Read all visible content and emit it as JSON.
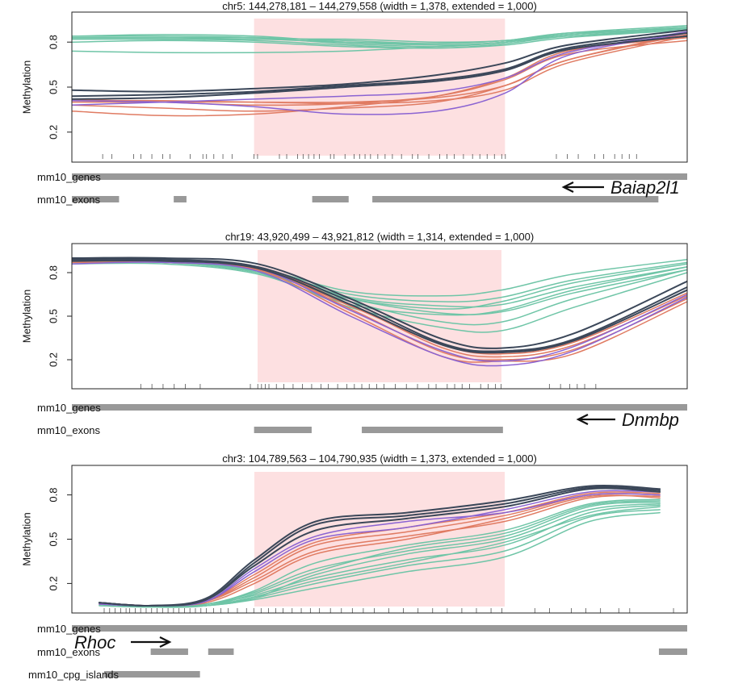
{
  "colors": {
    "green": "#6fc5a7",
    "orange": "#e07b62",
    "purple": "#8a63d2",
    "navy": "#3b4759",
    "dmr": "#fde0e1",
    "track": "#999999",
    "tick": "#555555"
  },
  "chart_data": [
    {
      "type": "line",
      "title": "chr5: 144,278,181 – 144,279,558 (width = 1,378, extended = 1,000)",
      "ylabel": "Methylation",
      "y_ticks": [
        "0.8",
        "0.5",
        "0.2"
      ],
      "y_tick_values": [
        0.8,
        0.5,
        0.2
      ],
      "ylim": [
        0.0,
        1.0
      ],
      "xlim": [
        144277181,
        144280558
      ],
      "dmr_region": [
        144278181,
        144279558
      ],
      "gene": {
        "name": "Baiap2l1",
        "direction": "left"
      },
      "tracks": [
        {
          "label": "mm10_genes",
          "segments": [
            [
              144277181,
              144280558
            ]
          ]
        },
        {
          "label": "mm10_exons",
          "segments": [
            [
              144277181,
              144277440
            ],
            [
              144277740,
              144277810
            ],
            [
              144278500,
              144278700
            ],
            [
              144278830,
              144280400
            ]
          ]
        }
      ],
      "cpg_positions": [
        144277350,
        144277400,
        144277520,
        144277560,
        144277620,
        144277680,
        144277720,
        144277830,
        144277900,
        144277920,
        144277960,
        144278010,
        144278060,
        144278180,
        144278200,
        144278320,
        144278360,
        144278420,
        144278450,
        144278480,
        144278510,
        144278540,
        144278600,
        144278620,
        144278680,
        144278730,
        144278760,
        144278790,
        144278820,
        144278860,
        144278900,
        144278940,
        144278990,
        144279050,
        144279080,
        144279140,
        144279200,
        144279240,
        144279280,
        144279330,
        144279380,
        144279420,
        144279460,
        144279500,
        144279540,
        144279560,
        144279840,
        144279900,
        144279960,
        144280050,
        144280100,
        144280160,
        144280200,
        144280240,
        144280280
      ],
      "x": [
        144277181,
        144277681,
        144278181,
        144278681,
        144279181,
        144279558,
        144279900,
        144280558
      ],
      "series": [
        {
          "group": "green",
          "values": [
            0.84,
            0.84,
            0.83,
            0.79,
            0.77,
            0.8,
            0.85,
            0.9
          ]
        },
        {
          "group": "green",
          "values": [
            0.83,
            0.83,
            0.83,
            0.81,
            0.79,
            0.81,
            0.86,
            0.89
          ]
        },
        {
          "group": "green",
          "values": [
            0.82,
            0.82,
            0.81,
            0.78,
            0.76,
            0.79,
            0.84,
            0.89
          ]
        },
        {
          "group": "green",
          "values": [
            0.84,
            0.85,
            0.84,
            0.8,
            0.78,
            0.8,
            0.85,
            0.89
          ]
        },
        {
          "group": "green",
          "values": [
            0.8,
            0.81,
            0.8,
            0.77,
            0.76,
            0.78,
            0.83,
            0.88
          ]
        },
        {
          "group": "green",
          "values": [
            0.82,
            0.82,
            0.82,
            0.8,
            0.79,
            0.81,
            0.85,
            0.9
          ]
        },
        {
          "group": "green",
          "values": [
            0.74,
            0.73,
            0.73,
            0.74,
            0.77,
            0.8,
            0.84,
            0.88
          ]
        },
        {
          "group": "green",
          "values": [
            0.83,
            0.83,
            0.82,
            0.82,
            0.8,
            0.81,
            0.86,
            0.91
          ]
        },
        {
          "group": "orange",
          "values": [
            0.4,
            0.4,
            0.4,
            0.39,
            0.41,
            0.48,
            0.66,
            0.84
          ]
        },
        {
          "group": "orange",
          "values": [
            0.38,
            0.36,
            0.34,
            0.36,
            0.4,
            0.51,
            0.68,
            0.85
          ]
        },
        {
          "group": "orange",
          "values": [
            0.42,
            0.4,
            0.38,
            0.39,
            0.44,
            0.55,
            0.72,
            0.81
          ]
        },
        {
          "group": "orange",
          "values": [
            0.34,
            0.31,
            0.32,
            0.37,
            0.44,
            0.56,
            0.74,
            0.83
          ]
        },
        {
          "group": "orange",
          "values": [
            0.41,
            0.41,
            0.4,
            0.4,
            0.43,
            0.51,
            0.68,
            0.86
          ]
        },
        {
          "group": "purple",
          "values": [
            0.41,
            0.4,
            0.37,
            0.32,
            0.34,
            0.46,
            0.71,
            0.86
          ]
        },
        {
          "group": "purple",
          "values": [
            0.38,
            0.4,
            0.42,
            0.44,
            0.47,
            0.56,
            0.73,
            0.87
          ]
        },
        {
          "group": "navy",
          "values": [
            0.48,
            0.47,
            0.49,
            0.52,
            0.58,
            0.66,
            0.78,
            0.88
          ]
        },
        {
          "group": "navy",
          "values": [
            0.44,
            0.45,
            0.47,
            0.51,
            0.55,
            0.62,
            0.76,
            0.86
          ]
        },
        {
          "group": "navy",
          "values": [
            0.42,
            0.43,
            0.46,
            0.5,
            0.54,
            0.61,
            0.75,
            0.84
          ]
        }
      ]
    },
    {
      "type": "line",
      "title": "chr19: 43,920,499 – 43,921,812 (width = 1,314, extended = 1,000)",
      "ylabel": "Methylation",
      "y_ticks": [
        "0.8",
        "0.5",
        "0.2"
      ],
      "y_tick_values": [
        0.8,
        0.5,
        0.2
      ],
      "ylim": [
        0.0,
        1.0
      ],
      "xlim": [
        43919499,
        43922812
      ],
      "dmr_region": [
        43920499,
        43921812
      ],
      "gene": {
        "name": "Dnmbp",
        "direction": "left"
      },
      "tracks": [
        {
          "label": "mm10_genes",
          "segments": [
            [
              43919499,
              43922812
            ]
          ]
        },
        {
          "label": "mm10_exons",
          "segments": [
            [
              43920480,
              43920790
            ],
            [
              43921060,
              43921820
            ]
          ]
        }
      ],
      "cpg_positions": [
        43919870,
        43919930,
        43919990,
        43920050,
        43920110,
        43920190,
        43920460,
        43920500,
        43920520,
        43920540,
        43920560,
        43920600,
        43920640,
        43920690,
        43920740,
        43920790,
        43920840,
        43920880,
        43920930,
        43920980,
        43921020,
        43921060,
        43921100,
        43921140,
        43921180,
        43921240,
        43921300,
        43921360,
        43921420,
        43921460,
        43921520,
        43921560,
        43921600,
        43921640,
        43921700,
        43921740,
        43921780,
        43921810,
        43922070,
        43922130,
        43922180,
        43922220,
        43922260,
        43922320
      ],
      "x": [
        43919499,
        43919999,
        43920499,
        43920999,
        43921499,
        43921812,
        43922200,
        43922812
      ],
      "series": [
        {
          "group": "green",
          "values": [
            0.89,
            0.89,
            0.83,
            0.67,
            0.64,
            0.68,
            0.79,
            0.89
          ]
        },
        {
          "group": "green",
          "values": [
            0.88,
            0.88,
            0.82,
            0.65,
            0.6,
            0.63,
            0.75,
            0.87
          ]
        },
        {
          "group": "green",
          "values": [
            0.87,
            0.87,
            0.8,
            0.62,
            0.55,
            0.6,
            0.73,
            0.86
          ]
        },
        {
          "group": "green",
          "values": [
            0.9,
            0.89,
            0.83,
            0.63,
            0.57,
            0.58,
            0.7,
            0.84
          ]
        },
        {
          "group": "green",
          "values": [
            0.86,
            0.86,
            0.79,
            0.58,
            0.51,
            0.54,
            0.68,
            0.84
          ]
        },
        {
          "group": "green",
          "values": [
            0.88,
            0.88,
            0.81,
            0.6,
            0.46,
            0.46,
            0.62,
            0.82
          ]
        },
        {
          "group": "green",
          "values": [
            0.89,
            0.88,
            0.8,
            0.56,
            0.42,
            0.4,
            0.56,
            0.8
          ]
        },
        {
          "group": "green",
          "values": [
            0.87,
            0.87,
            0.81,
            0.62,
            0.52,
            0.53,
            0.66,
            0.82
          ]
        },
        {
          "group": "orange",
          "values": [
            0.88,
            0.88,
            0.84,
            0.58,
            0.28,
            0.22,
            0.3,
            0.64
          ]
        },
        {
          "group": "orange",
          "values": [
            0.89,
            0.88,
            0.83,
            0.55,
            0.25,
            0.2,
            0.27,
            0.62
          ]
        },
        {
          "group": "orange",
          "values": [
            0.9,
            0.89,
            0.82,
            0.52,
            0.22,
            0.19,
            0.24,
            0.6
          ]
        },
        {
          "group": "orange",
          "values": [
            0.87,
            0.87,
            0.82,
            0.57,
            0.3,
            0.24,
            0.32,
            0.66
          ]
        },
        {
          "group": "purple",
          "values": [
            0.86,
            0.87,
            0.81,
            0.5,
            0.22,
            0.16,
            0.26,
            0.63
          ]
        },
        {
          "group": "purple",
          "values": [
            0.88,
            0.88,
            0.83,
            0.54,
            0.26,
            0.19,
            0.29,
            0.65
          ]
        },
        {
          "group": "navy",
          "values": [
            0.9,
            0.9,
            0.86,
            0.62,
            0.34,
            0.28,
            0.38,
            0.74
          ]
        },
        {
          "group": "navy",
          "values": [
            0.89,
            0.89,
            0.84,
            0.6,
            0.31,
            0.26,
            0.34,
            0.7
          ]
        },
        {
          "group": "navy",
          "values": [
            0.88,
            0.88,
            0.83,
            0.58,
            0.3,
            0.25,
            0.33,
            0.68
          ]
        }
      ]
    },
    {
      "type": "line",
      "title": "chr3: 104,789,563 – 104,790,935 (width = 1,373, extended = 1,000)",
      "ylabel": "Methylation",
      "y_ticks": [
        "0.8",
        "0.5",
        "0.2"
      ],
      "y_tick_values": [
        0.8,
        0.5,
        0.2
      ],
      "ylim": [
        0.0,
        1.0
      ],
      "xlim": [
        104788563,
        104791935
      ],
      "dmr_region": [
        104789563,
        104790935
      ],
      "gene": {
        "name": "Rhoc",
        "direction": "right"
      },
      "tracks": [
        {
          "label": "mm10_genes",
          "segments": [
            [
              104788563,
              104791935
            ]
          ]
        },
        {
          "label": "mm10_exons",
          "segments": [
            [
              104788995,
              104789200
            ],
            [
              104789310,
              104789450
            ],
            [
              104791780,
              104791935
            ]
          ]
        },
        {
          "label": "mm10_cpg_islands",
          "segments": [
            [
              104788740,
              104789265
            ]
          ]
        }
      ],
      "cpg_positions": [
        104788740,
        104788770,
        104788800,
        104788830,
        104788860,
        104788880,
        104788910,
        104788940,
        104788970,
        104789000,
        104789030,
        104789060,
        104789090,
        104789120,
        104789150,
        104789180,
        104789210,
        104789240,
        104789270,
        104789300,
        104789340,
        104789380,
        104789420,
        104789470,
        104789520,
        104789560,
        104789600,
        104789640,
        104789680,
        104789720,
        104789770,
        104789820,
        104789870,
        104789920,
        104789980,
        104790040,
        104790100,
        104790160,
        104790220,
        104790300,
        104790380,
        104790460,
        104790540,
        104790620,
        104790700,
        104790780,
        104790860,
        104790920,
        104791100,
        104791180,
        104791300,
        104791380,
        104791460,
        104791560,
        104791620,
        104791860
      ],
      "x": [
        104788713,
        104789000,
        104789300,
        104789563,
        104789900,
        104790400,
        104790935,
        104791400,
        104791785
      ],
      "series": [
        {
          "group": "green",
          "values": [
            0.06,
            0.04,
            0.05,
            0.1,
            0.2,
            0.32,
            0.42,
            0.65,
            0.7
          ]
        },
        {
          "group": "green",
          "values": [
            0.06,
            0.04,
            0.05,
            0.09,
            0.17,
            0.28,
            0.38,
            0.62,
            0.68
          ]
        },
        {
          "group": "green",
          "values": [
            0.06,
            0.04,
            0.06,
            0.12,
            0.24,
            0.36,
            0.46,
            0.68,
            0.73
          ]
        },
        {
          "group": "green",
          "values": [
            0.05,
            0.04,
            0.05,
            0.1,
            0.26,
            0.4,
            0.5,
            0.7,
            0.74
          ]
        },
        {
          "group": "green",
          "values": [
            0.06,
            0.04,
            0.06,
            0.14,
            0.3,
            0.42,
            0.52,
            0.72,
            0.75
          ]
        },
        {
          "group": "green",
          "values": [
            0.05,
            0.04,
            0.05,
            0.11,
            0.22,
            0.34,
            0.48,
            0.66,
            0.72
          ]
        },
        {
          "group": "green",
          "values": [
            0.06,
            0.04,
            0.06,
            0.15,
            0.34,
            0.46,
            0.56,
            0.74,
            0.77
          ]
        },
        {
          "group": "green",
          "values": [
            0.06,
            0.04,
            0.05,
            0.13,
            0.28,
            0.44,
            0.54,
            0.73,
            0.76
          ]
        },
        {
          "group": "orange",
          "values": [
            0.07,
            0.05,
            0.08,
            0.24,
            0.46,
            0.55,
            0.66,
            0.8,
            0.8
          ]
        },
        {
          "group": "orange",
          "values": [
            0.07,
            0.05,
            0.08,
            0.22,
            0.42,
            0.52,
            0.62,
            0.78,
            0.79
          ]
        },
        {
          "group": "orange",
          "values": [
            0.06,
            0.05,
            0.07,
            0.2,
            0.4,
            0.5,
            0.64,
            0.79,
            0.78
          ]
        },
        {
          "group": "orange",
          "values": [
            0.07,
            0.05,
            0.08,
            0.26,
            0.48,
            0.58,
            0.68,
            0.81,
            0.81
          ]
        },
        {
          "group": "purple",
          "values": [
            0.07,
            0.05,
            0.08,
            0.28,
            0.5,
            0.58,
            0.7,
            0.82,
            0.82
          ]
        },
        {
          "group": "purple",
          "values": [
            0.06,
            0.05,
            0.08,
            0.3,
            0.52,
            0.62,
            0.68,
            0.8,
            0.8
          ]
        },
        {
          "group": "navy",
          "values": [
            0.07,
            0.05,
            0.1,
            0.36,
            0.62,
            0.68,
            0.76,
            0.86,
            0.84
          ]
        },
        {
          "group": "navy",
          "values": [
            0.07,
            0.05,
            0.09,
            0.34,
            0.6,
            0.66,
            0.74,
            0.85,
            0.83
          ]
        },
        {
          "group": "navy",
          "values": [
            0.07,
            0.05,
            0.09,
            0.32,
            0.56,
            0.64,
            0.72,
            0.84,
            0.82
          ]
        }
      ]
    }
  ]
}
